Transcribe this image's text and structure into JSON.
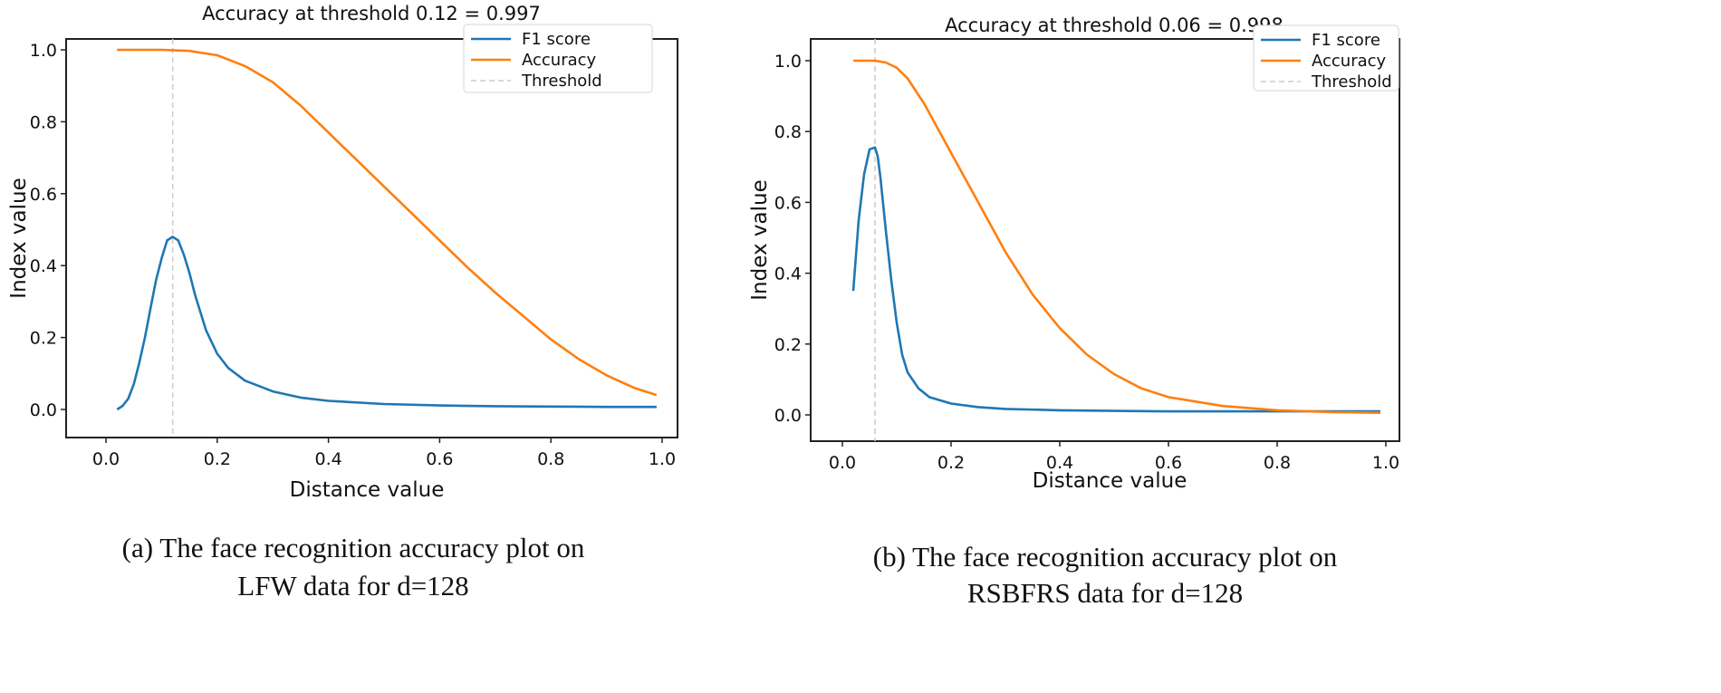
{
  "chart_data": [
    {
      "type": "line",
      "title": "Accuracy at threshold 0.12 = 0.997",
      "xlabel": "Distance value",
      "ylabel": "Index value",
      "caption": [
        "(a) The face recognition accuracy plot on",
        "LFW data for d=128"
      ],
      "xlim": [
        0.0,
        1.0
      ],
      "ylim": [
        0.0,
        1.0
      ],
      "xticks": [
        "0.0",
        "0.2",
        "0.4",
        "0.6",
        "0.8",
        "1.0"
      ],
      "yticks": [
        "0.0",
        "0.2",
        "0.4",
        "0.6",
        "0.8",
        "1.0"
      ],
      "legend_position": "top-right",
      "threshold": 0.12,
      "series": [
        {
          "name": "F1 score",
          "color": "#1f77b4",
          "x": [
            0.02,
            0.03,
            0.04,
            0.05,
            0.06,
            0.07,
            0.08,
            0.09,
            0.1,
            0.11,
            0.12,
            0.13,
            0.14,
            0.15,
            0.16,
            0.18,
            0.2,
            0.22,
            0.25,
            0.3,
            0.35,
            0.4,
            0.5,
            0.6,
            0.7,
            0.8,
            0.9,
            0.99
          ],
          "y": [
            0.0,
            0.01,
            0.03,
            0.07,
            0.13,
            0.2,
            0.28,
            0.36,
            0.42,
            0.47,
            0.48,
            0.47,
            0.43,
            0.38,
            0.32,
            0.22,
            0.155,
            0.115,
            0.08,
            0.05,
            0.033,
            0.024,
            0.015,
            0.011,
            0.009,
            0.008,
            0.007,
            0.007
          ]
        },
        {
          "name": "Accuracy",
          "color": "#ff7f0e",
          "x": [
            0.02,
            0.1,
            0.15,
            0.2,
            0.25,
            0.3,
            0.35,
            0.4,
            0.45,
            0.5,
            0.55,
            0.6,
            0.65,
            0.7,
            0.75,
            0.8,
            0.85,
            0.9,
            0.95,
            0.99
          ],
          "y": [
            1.0,
            1.0,
            0.997,
            0.985,
            0.955,
            0.91,
            0.845,
            0.77,
            0.695,
            0.62,
            0.545,
            0.47,
            0.395,
            0.325,
            0.26,
            0.195,
            0.14,
            0.095,
            0.06,
            0.04
          ]
        },
        {
          "name": "Threshold",
          "color": "#cccccc",
          "style": "dashed"
        }
      ]
    },
    {
      "type": "line",
      "title": "Accuracy at threshold 0.06 = 0.998",
      "xlabel": "Distance value",
      "ylabel": "Index value",
      "caption": [
        "(b) The face recognition accuracy plot on",
        "RSBFRS data for d=128"
      ],
      "xlim": [
        0.0,
        1.0
      ],
      "ylim": [
        0.0,
        1.0
      ],
      "xticks": [
        "0.0",
        "0.2",
        "0.4",
        "0.6",
        "0.8",
        "1.0"
      ],
      "yticks": [
        "0.0",
        "0.2",
        "0.4",
        "0.6",
        "0.8",
        "1.0"
      ],
      "legend_position": "top-right",
      "threshold": 0.06,
      "series": [
        {
          "name": "F1 score",
          "color": "#1f77b4",
          "x": [
            0.02,
            0.03,
            0.04,
            0.05,
            0.06,
            0.065,
            0.07,
            0.08,
            0.09,
            0.1,
            0.11,
            0.12,
            0.14,
            0.16,
            0.2,
            0.25,
            0.3,
            0.4,
            0.6,
            0.8,
            0.99
          ],
          "y": [
            0.35,
            0.55,
            0.68,
            0.75,
            0.755,
            0.73,
            0.67,
            0.52,
            0.38,
            0.26,
            0.17,
            0.12,
            0.075,
            0.05,
            0.032,
            0.022,
            0.017,
            0.013,
            0.01,
            0.01,
            0.01
          ]
        },
        {
          "name": "Accuracy",
          "color": "#ff7f0e",
          "x": [
            0.02,
            0.06,
            0.08,
            0.1,
            0.12,
            0.15,
            0.2,
            0.25,
            0.3,
            0.35,
            0.4,
            0.45,
            0.5,
            0.55,
            0.6,
            0.7,
            0.8,
            0.9,
            0.99
          ],
          "y": [
            1.0,
            1.0,
            0.995,
            0.98,
            0.95,
            0.88,
            0.74,
            0.6,
            0.46,
            0.34,
            0.245,
            0.17,
            0.115,
            0.075,
            0.05,
            0.025,
            0.013,
            0.008,
            0.006
          ]
        },
        {
          "name": "Threshold",
          "color": "#cccccc",
          "style": "dashed"
        }
      ]
    }
  ]
}
